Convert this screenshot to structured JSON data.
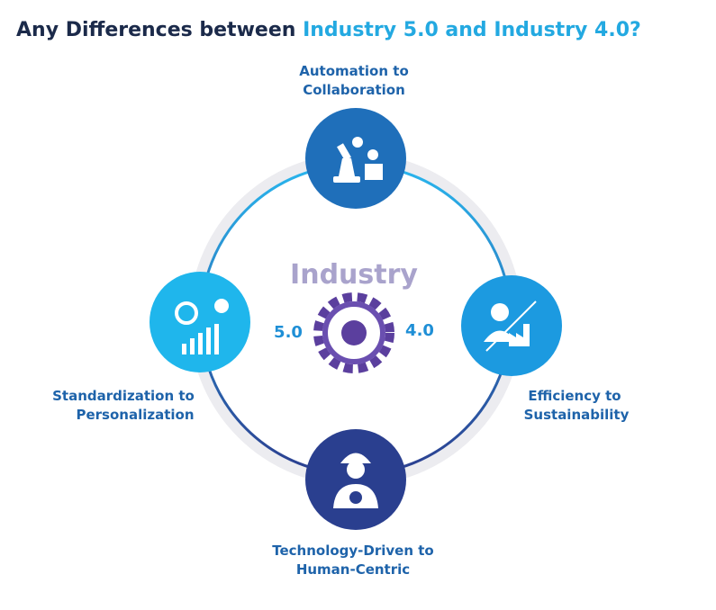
{
  "title": {
    "lead": "Any Differences between ",
    "highlight": "Industry 5.0 and Industry 4.0?"
  },
  "center": {
    "label": "Industry",
    "left": "5.0",
    "right": "4.0"
  },
  "nodes": [
    {
      "lines": [
        "Automation to",
        "Collaboration"
      ]
    },
    {
      "lines": [
        "Efficiency to",
        "Sustainability"
      ]
    },
    {
      "lines": [
        "Technology-Driven to",
        "Human-Centric"
      ]
    },
    {
      "lines": [
        "Standardization to",
        "Personalization"
      ]
    }
  ]
}
